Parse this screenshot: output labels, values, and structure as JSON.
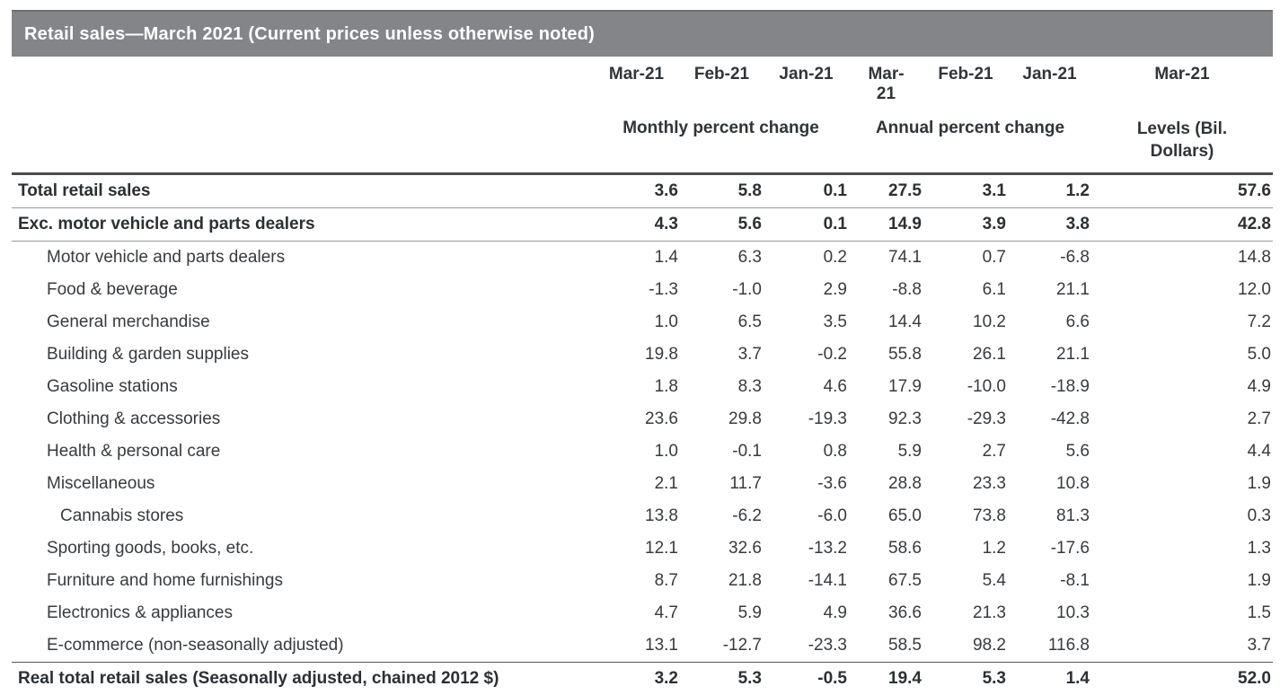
{
  "title_bar": {
    "title": "Retail sales—March 2021 (Current prices unless otherwise noted)"
  },
  "colors": {
    "title_bar_bg": "#838588",
    "title_bar_top_edge": "#6e7073",
    "title_text": "#ffffff",
    "header_rule": "#4c4c4c",
    "row_rule_light": "#97999b",
    "row_rule_dark": "#55585b",
    "body_text": "#363b40"
  },
  "chart_data": {
    "type": "table",
    "title": "Retail sales—March 2021 (Current prices unless otherwise noted)",
    "period_headers": [
      "Mar-21",
      "Feb-21",
      "Jan-21",
      "Mar-21",
      "Feb-21",
      "Jan-21",
      "Mar-21"
    ],
    "column_groups": [
      {
        "label": "Monthly percent change",
        "span": 3
      },
      {
        "label": "Annual percent change",
        "span": 3
      },
      {
        "label": "Levels (Bil. Dollars)",
        "span": 1
      }
    ],
    "rows": [
      {
        "label": "Total retail sales",
        "bold": true,
        "indent": 0,
        "values": [
          "3.6",
          "5.8",
          "0.1",
          "27.5",
          "3.1",
          "1.2",
          "57.6"
        ]
      },
      {
        "label": "Exc. motor vehicle and parts dealers",
        "bold": true,
        "indent": 0,
        "values": [
          "4.3",
          "5.6",
          "0.1",
          "14.9",
          "3.9",
          "3.8",
          "42.8"
        ]
      },
      {
        "label": "Motor vehicle and parts dealers",
        "bold": false,
        "indent": 1,
        "values": [
          "1.4",
          "6.3",
          "0.2",
          "74.1",
          "0.7",
          "-6.8",
          "14.8"
        ]
      },
      {
        "label": "Food & beverage",
        "bold": false,
        "indent": 1,
        "values": [
          "-1.3",
          "-1.0",
          "2.9",
          "-8.8",
          "6.1",
          "21.1",
          "12.0"
        ]
      },
      {
        "label": "General merchandise",
        "bold": false,
        "indent": 1,
        "values": [
          "1.0",
          "6.5",
          "3.5",
          "14.4",
          "10.2",
          "6.6",
          "7.2"
        ]
      },
      {
        "label": "Building & garden supplies",
        "bold": false,
        "indent": 1,
        "values": [
          "19.8",
          "3.7",
          "-0.2",
          "55.8",
          "26.1",
          "21.1",
          "5.0"
        ]
      },
      {
        "label": "Gasoline stations",
        "bold": false,
        "indent": 1,
        "values": [
          "1.8",
          "8.3",
          "4.6",
          "17.9",
          "-10.0",
          "-18.9",
          "4.9"
        ]
      },
      {
        "label": "Clothing & accessories",
        "bold": false,
        "indent": 1,
        "values": [
          "23.6",
          "29.8",
          "-19.3",
          "92.3",
          "-29.3",
          "-42.8",
          "2.7"
        ]
      },
      {
        "label": "Health & personal care",
        "bold": false,
        "indent": 1,
        "values": [
          "1.0",
          "-0.1",
          "0.8",
          "5.9",
          "2.7",
          "5.6",
          "4.4"
        ]
      },
      {
        "label": "Miscellaneous",
        "bold": false,
        "indent": 1,
        "values": [
          "2.1",
          "11.7",
          "-3.6",
          "28.8",
          "23.3",
          "10.8",
          "1.9"
        ]
      },
      {
        "label": "Cannabis stores",
        "bold": false,
        "indent": 2,
        "values": [
          "13.8",
          "-6.2",
          "-6.0",
          "65.0",
          "73.8",
          "81.3",
          "0.3"
        ]
      },
      {
        "label": "Sporting goods, books, etc.",
        "bold": false,
        "indent": 1,
        "values": [
          "12.1",
          "32.6",
          "-13.2",
          "58.6",
          "1.2",
          "-17.6",
          "1.3"
        ]
      },
      {
        "label": "Furniture and home furnishings",
        "bold": false,
        "indent": 1,
        "values": [
          "8.7",
          "21.8",
          "-14.1",
          "67.5",
          "5.4",
          "-8.1",
          "1.9"
        ]
      },
      {
        "label": "Electronics & appliances",
        "bold": false,
        "indent": 1,
        "values": [
          "4.7",
          "5.9",
          "4.9",
          "36.6",
          "21.3",
          "10.3",
          "1.5"
        ]
      },
      {
        "label": "E-commerce (non-seasonally adjusted)",
        "bold": false,
        "indent": 1,
        "values": [
          "13.1",
          "-12.7",
          "-23.3",
          "58.5",
          "98.2",
          "116.8",
          "3.7"
        ]
      },
      {
        "label": "Real total retail sales (Seasonally adjusted, chained 2012 $)",
        "bold": true,
        "indent": 0,
        "values": [
          "3.2",
          "5.3",
          "-0.5",
          "19.4",
          "5.3",
          "1.4",
          "52.0"
        ]
      }
    ]
  }
}
